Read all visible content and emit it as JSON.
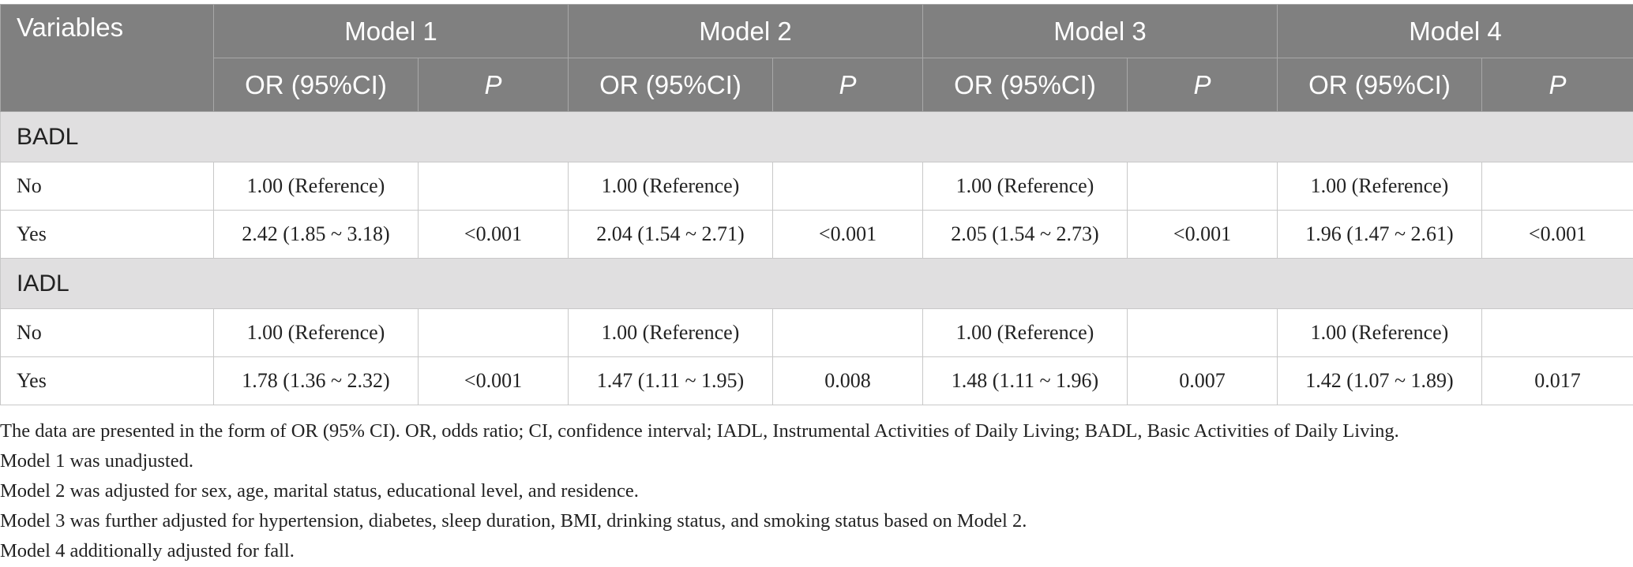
{
  "header": {
    "variables": "Variables",
    "models": [
      "Model 1",
      "Model 2",
      "Model 3",
      "Model 4"
    ],
    "or_label": "OR (95%CI)",
    "p_label": "P"
  },
  "sections": [
    {
      "name": "BADL",
      "rows": [
        {
          "label": "No",
          "cells": [
            {
              "or": "1.00 (Reference)",
              "p": ""
            },
            {
              "or": "1.00 (Reference)",
              "p": ""
            },
            {
              "or": "1.00 (Reference)",
              "p": ""
            },
            {
              "or": "1.00 (Reference)",
              "p": ""
            }
          ]
        },
        {
          "label": "Yes",
          "cells": [
            {
              "or": "2.42 (1.85 ~ 3.18)",
              "p": "<0.001"
            },
            {
              "or": "2.04 (1.54 ~ 2.71)",
              "p": "<0.001"
            },
            {
              "or": "2.05 (1.54 ~ 2.73)",
              "p": "<0.001"
            },
            {
              "or": "1.96 (1.47 ~ 2.61)",
              "p": "<0.001"
            }
          ]
        }
      ]
    },
    {
      "name": "IADL",
      "rows": [
        {
          "label": "No",
          "cells": [
            {
              "or": "1.00 (Reference)",
              "p": ""
            },
            {
              "or": "1.00 (Reference)",
              "p": ""
            },
            {
              "or": "1.00 (Reference)",
              "p": ""
            },
            {
              "or": "1.00 (Reference)",
              "p": ""
            }
          ]
        },
        {
          "label": "Yes",
          "cells": [
            {
              "or": "1.78 (1.36 ~ 2.32)",
              "p": "<0.001"
            },
            {
              "or": "1.47 (1.11 ~ 1.95)",
              "p": "0.008"
            },
            {
              "or": "1.48 (1.11 ~ 1.96)",
              "p": "0.007"
            },
            {
              "or": "1.42 (1.07 ~ 1.89)",
              "p": "0.017"
            }
          ]
        }
      ]
    }
  ],
  "notes": [
    "The data are presented in the form of OR (95% CI). OR, odds ratio; CI, confidence interval; IADL, Instrumental Activities of Daily Living; BADL, Basic Activities of Daily Living.",
    "Model 1 was unadjusted.",
    "Model 2 was adjusted for sex, age, marital status, educational level, and residence.",
    "Model 3 was further adjusted for hypertension, diabetes, sleep duration, BMI, drinking status, and smoking status based on Model 2.",
    "Model 4 additionally adjusted for fall."
  ],
  "colors": {
    "header_bg": "#808080",
    "section_bg": "#e0dfe0",
    "text": "#222222"
  }
}
